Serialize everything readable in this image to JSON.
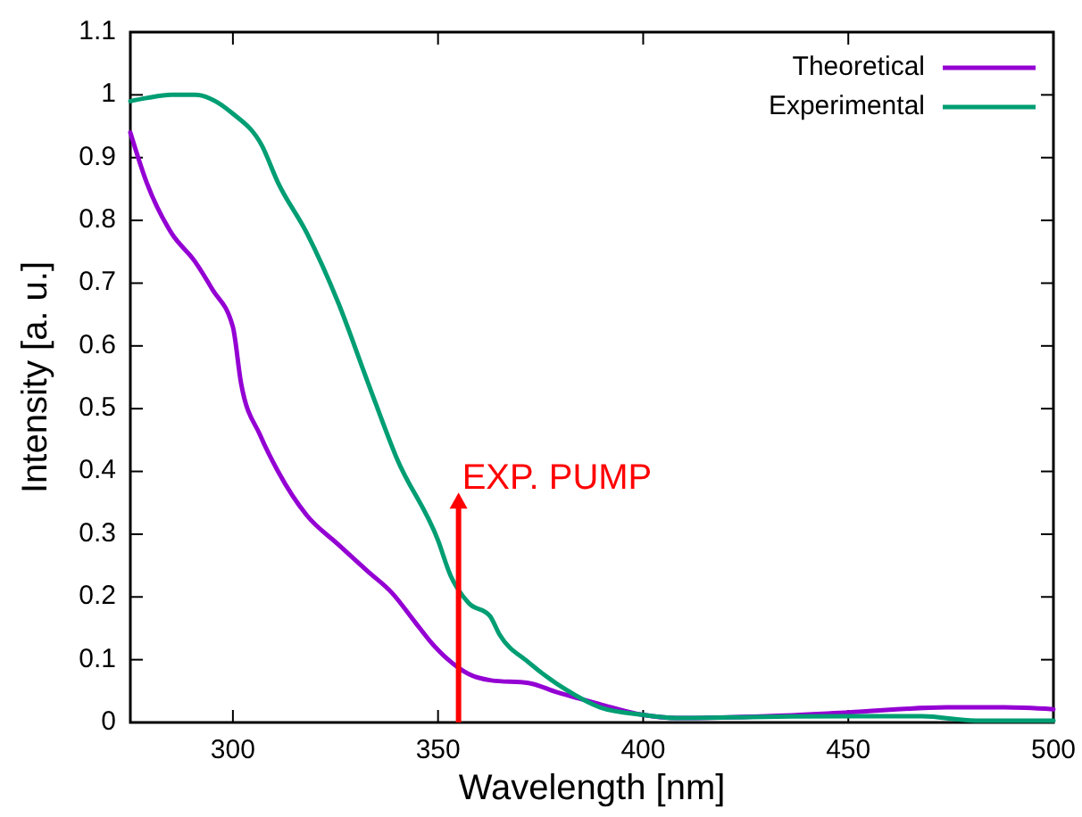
{
  "chart_data": {
    "type": "line",
    "xlabel": "Wavelength [nm]",
    "ylabel": "Intensity [a. u.]",
    "xlim": [
      275,
      500
    ],
    "ylim": [
      0,
      1.1
    ],
    "xticks": [
      300,
      350,
      400,
      450,
      500
    ],
    "yticks": [
      0,
      0.1,
      0.2,
      0.3,
      0.4,
      0.5,
      0.6,
      0.7,
      0.8,
      0.9,
      1,
      1.1
    ],
    "grid": false,
    "legend": "top right",
    "marker": "none",
    "line_style": "solid",
    "ref_lines": [
      {
        "axis": "x",
        "value": 355,
        "label": "EXP. PUMP",
        "color": "#ff0000"
      }
    ],
    "series": [
      {
        "name": "Theoretical",
        "color": "#9400d3",
        "x": [
          275,
          279,
          285,
          290.7,
          295,
          300,
          302,
          306.7,
          311,
          318,
          325.6,
          333,
          338.7,
          344.5,
          348,
          352.5,
          357.5,
          363,
          372,
          379,
          389.5,
          400,
          408,
          430,
          450,
          474,
          488,
          500
        ],
        "values": [
          0.94,
          0.86,
          0.78,
          0.735,
          0.69,
          0.63,
          0.54,
          0.457,
          0.4,
          0.33,
          0.284,
          0.24,
          0.207,
          0.159,
          0.13,
          0.1,
          0.077,
          0.067,
          0.063,
          0.048,
          0.029,
          0.012,
          0.007,
          0.01,
          0.016,
          0.024,
          0.024,
          0.021
        ]
      },
      {
        "name": "Experimental",
        "color": "#009e73",
        "x": [
          275,
          279,
          285,
          290.7,
          300,
          307,
          311,
          318,
          325.6,
          333,
          340,
          350,
          353,
          357.5,
          362.6,
          365,
          372,
          381,
          389.5,
          400,
          408,
          430,
          450,
          468,
          481,
          500
        ],
        "values": [
          0.99,
          0.995,
          1.0,
          1.0,
          0.97,
          0.92,
          0.86,
          0.78,
          0.67,
          0.54,
          0.42,
          0.29,
          0.235,
          0.19,
          0.17,
          0.14,
          0.096,
          0.053,
          0.024,
          0.012,
          0.007,
          0.009,
          0.01,
          0.01,
          0.003,
          0.003
        ]
      }
    ]
  }
}
